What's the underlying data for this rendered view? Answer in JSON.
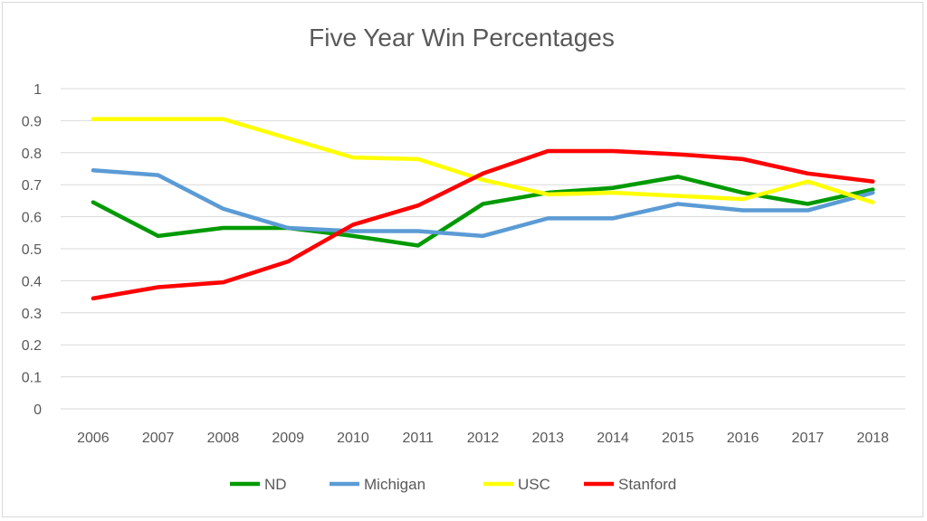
{
  "chart_data": {
    "type": "line",
    "title": "Five Year Win Percentages",
    "xlabel": "",
    "ylabel": "",
    "categories": [
      "2006",
      "2007",
      "2008",
      "2009",
      "2010",
      "2011",
      "2012",
      "2013",
      "2014",
      "2015",
      "2016",
      "2017",
      "2018"
    ],
    "yticks": [
      "0",
      "0.1",
      "0.2",
      "0.3",
      "0.4",
      "0.5",
      "0.6",
      "0.7",
      "0.8",
      "0.9",
      "1"
    ],
    "ylim": [
      0,
      1
    ],
    "grid": true,
    "legend_position": "bottom",
    "series": [
      {
        "name": "ND",
        "color": "#009a00",
        "values": [
          0.645,
          0.54,
          0.565,
          0.565,
          0.54,
          0.51,
          0.64,
          0.675,
          0.69,
          0.725,
          0.675,
          0.64,
          0.685
        ]
      },
      {
        "name": "Michigan",
        "color": "#5b9bd5",
        "values": [
          0.745,
          0.73,
          0.625,
          0.565,
          0.555,
          0.555,
          0.54,
          0.595,
          0.595,
          0.64,
          0.62,
          0.62,
          0.675
        ]
      },
      {
        "name": "USC",
        "color": "#ffff00",
        "values": [
          0.905,
          0.905,
          0.905,
          0.845,
          0.785,
          0.78,
          0.715,
          0.67,
          0.675,
          0.665,
          0.655,
          0.71,
          0.645
        ]
      },
      {
        "name": "Stanford",
        "color": "#ff0000",
        "values": [
          0.345,
          0.38,
          0.395,
          0.46,
          0.575,
          0.635,
          0.735,
          0.805,
          0.805,
          0.795,
          0.78,
          0.735,
          0.71
        ]
      }
    ]
  }
}
